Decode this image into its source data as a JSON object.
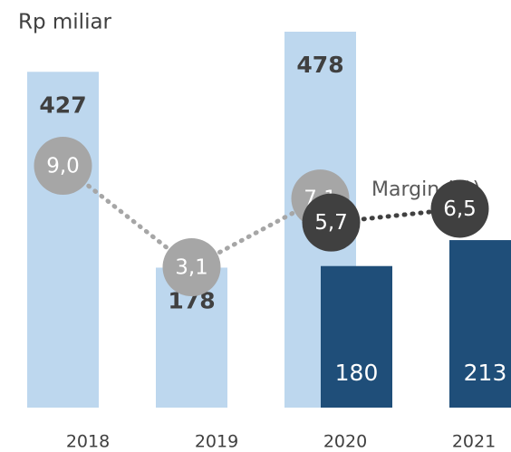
{
  "chart_data": {
    "type": "bar",
    "title": "Rp miliar",
    "categories": [
      "2018",
      "2019",
      "2020",
      "2021"
    ],
    "series": [
      {
        "color": "#bdd7ee",
        "label_color": "#404040",
        "values": [
          427,
          178,
          478,
          null
        ]
      },
      {
        "color": "#1f4e79",
        "label_color": "#ffffff",
        "values": [
          null,
          null,
          180,
          213
        ]
      },
      {
        "type": "line",
        "color": "#a6a6a6",
        "values": [
          9.0,
          3.1,
          7.1,
          null
        ],
        "value_labels": [
          "9,0",
          "3,1",
          "7,1",
          null
        ]
      },
      {
        "type": "line",
        "color": "#404040",
        "values": [
          null,
          null,
          5.7,
          6.5
        ],
        "value_labels": [
          null,
          null,
          "5,7",
          "6,5"
        ]
      }
    ],
    "annotation": "Margin (%)"
  }
}
